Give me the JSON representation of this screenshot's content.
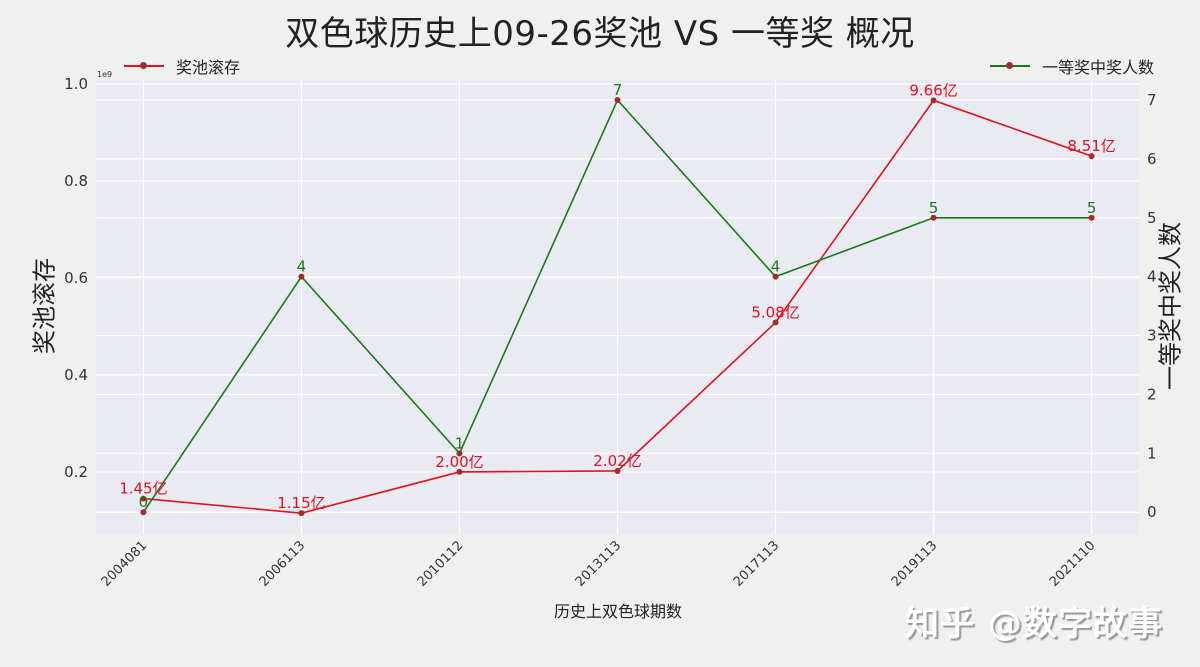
{
  "chart_data": {
    "type": "line",
    "title": "双色球历史上09-26奖池 VS 一等奖 概况",
    "xlabel": "历史上双色球期数",
    "ylabel_left": "奖池滚存",
    "ylabel_right": "一等奖中奖人数",
    "y_left_offset_text": "1e9",
    "categories": [
      "2004081",
      "2006113",
      "2010112",
      "2013113",
      "2017113",
      "2019113",
      "2021110"
    ],
    "series": [
      {
        "name": "奖池滚存",
        "axis": "left",
        "color": "#e3101d",
        "marker_color": "#a52a2a",
        "values": [
          145000000,
          115000000,
          200000000,
          202000000,
          508000000,
          966000000,
          851000000
        ],
        "data_labels": [
          "1.45亿",
          "1.15亿",
          "2.00亿",
          "2.02亿",
          "5.08亿",
          "9.66亿",
          "8.51亿"
        ]
      },
      {
        "name": "一等奖中奖人数",
        "axis": "right",
        "color": "#1a7a1a",
        "marker_color": "#a52a2a",
        "values": [
          0,
          4,
          1,
          7,
          4,
          5,
          5
        ],
        "data_labels": [
          "0",
          "4",
          "1",
          "7",
          "4",
          "5",
          "5"
        ]
      }
    ],
    "y_left_ticks": [
      "0.2",
      "0.4",
      "0.6",
      "0.8",
      "1.0"
    ],
    "y_left_tick_values": [
      0.2,
      0.4,
      0.6,
      0.8,
      1.0
    ],
    "y_right_ticks": [
      "0",
      "1",
      "2",
      "3",
      "4",
      "5",
      "6",
      "7"
    ],
    "ylim_left": [
      0.072,
      1.008
    ],
    "ylim_right": [
      -0.37,
      7.34
    ],
    "grid": true,
    "legend_position": "top (left series at left, right series at right)",
    "background": "#eaeaf2"
  },
  "legend": {
    "left_label": "奖池滚存",
    "right_label": "一等奖中奖人数"
  },
  "watermark": "知乎 @数字故事"
}
